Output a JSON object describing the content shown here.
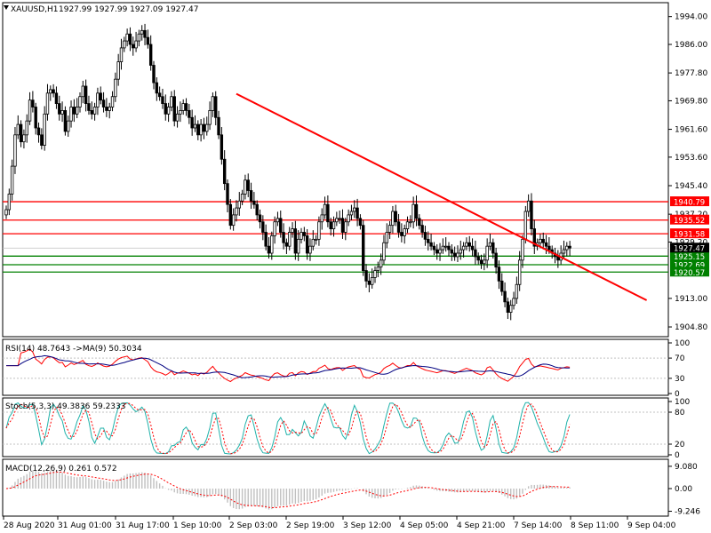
{
  "header": {
    "symbol": "XAUUSD,H1",
    "ohlc": "1927.99 1927.99 1927.09 1927.47"
  },
  "indicators": {
    "rsi_label": "RSI(14) 48.7643 ->MA(9) 50.3034",
    "stoch_label": "Stoch(5,3,3) 49.3836 59.2333",
    "macd_label": "MACD(12,26,9) 0.261 0.572"
  },
  "colors": {
    "background": "#ffffff",
    "frame": "#000000",
    "grid": "#c0c0c0",
    "candle": "#000000",
    "resistance": "#ff0000",
    "support": "#008000",
    "trendline": "#ff0000",
    "rsi_line": "#ff0000",
    "rsi_ma": "#000080",
    "stoch_main": "#20b2aa",
    "stoch_signal": "#ff0000",
    "macd_hist": "#c0c0c0",
    "macd_signal": "#ff0000"
  },
  "chart_data": {
    "type": "candlestick",
    "symbol": "XAUUSD",
    "timeframe": "H1",
    "ylim": [
      1902,
      1998
    ],
    "price_ticks": [
      "1994.00",
      "1986.00",
      "1977.80",
      "1969.80",
      "1961.60",
      "1953.60",
      "1945.40",
      "1937.20",
      "1929.20",
      "1913.00",
      "1904.80"
    ],
    "x_labels": [
      "28 Aug 2020",
      "31 Aug 01:00",
      "31 Aug 17:00",
      "1 Sep 10:00",
      "2 Sep 03:00",
      "2 Sep 19:00",
      "3 Sep 12:00",
      "4 Sep 05:00",
      "4 Sep 21:00",
      "7 Sep 14:00",
      "8 Sep 11:00",
      "9 Sep 04:00"
    ],
    "last_price": "1927.47",
    "resistance_levels": [
      "1940.79",
      "1935.52",
      "1931.58"
    ],
    "support_levels": [
      "1925.15",
      "1922.69",
      "1920.57"
    ],
    "closes": [
      1938.5,
      1943,
      1951,
      1960,
      1963,
      1958,
      1960,
      1964,
      1970,
      1968,
      1962,
      1960,
      1957,
      1966,
      1972,
      1973,
      1972,
      1969,
      1966,
      1967,
      1961,
      1964,
      1968,
      1966,
      1968,
      1971,
      1974,
      1969,
      1967,
      1966,
      1968,
      1972,
      1970,
      1968,
      1967,
      1968,
      1971,
      1976,
      1981,
      1985,
      1987,
      1989,
      1986,
      1985,
      1987,
      1989,
      1990,
      1988,
      1986,
      1980,
      1975,
      1972,
      1971,
      1969,
      1966,
      1968,
      1971,
      1964,
      1966,
      1967,
      1969,
      1967,
      1965,
      1962,
      1963,
      1960,
      1963,
      1961,
      1963,
      1967,
      1971,
      1965,
      1960,
      1953,
      1946,
      1940,
      1934,
      1937,
      1939,
      1941,
      1943,
      1947,
      1944,
      1941,
      1940,
      1937,
      1935,
      1932,
      1928,
      1926,
      1931,
      1935,
      1936,
      1932,
      1929,
      1928,
      1932,
      1933,
      1926,
      1930,
      1932,
      1931,
      1926,
      1928,
      1930,
      1930,
      1935,
      1937,
      1940,
      1935,
      1933,
      1935,
      1936,
      1936,
      1932,
      1935,
      1937,
      1938,
      1939,
      1936,
      1934,
      1921,
      1918,
      1917,
      1919,
      1921,
      1922,
      1924,
      1929,
      1932,
      1934,
      1938,
      1935,
      1932,
      1931,
      1933,
      1935,
      1935,
      1940,
      1936,
      1934,
      1932,
      1930,
      1929,
      1928,
      1927,
      1926,
      1927,
      1928,
      1928,
      1927,
      1926,
      1925,
      1926,
      1927,
      1928,
      1929,
      1928,
      1927,
      1925,
      1924,
      1923,
      1924,
      1928,
      1929,
      1926,
      1922,
      1918,
      1915,
      1912,
      1909,
      1911,
      1913,
      1917,
      1924,
      1930,
      1938,
      1941,
      1933,
      1928,
      1929,
      1930,
      1929,
      1928,
      1927,
      1926,
      1925,
      1924,
      1926,
      1927,
      1928,
      1927.47
    ],
    "trendline": {
      "from": [
        78,
        1971.8
      ],
      "to": [
        205,
        1917.6
      ]
    },
    "rsi": {
      "levels": [
        70,
        30
      ],
      "axis_ticks": [
        "100",
        "70",
        "30",
        "0"
      ],
      "ylim": [
        0,
        100
      ]
    },
    "stochastic": {
      "levels": [
        80,
        20
      ],
      "axis_ticks": [
        "100",
        "80",
        "20",
        "0"
      ],
      "ylim": [
        0,
        100
      ]
    },
    "macd": {
      "axis_ticks": [
        "9.080",
        "0.00",
        "-9.246"
      ],
      "ylim": [
        -10.5,
        10.5
      ]
    }
  }
}
